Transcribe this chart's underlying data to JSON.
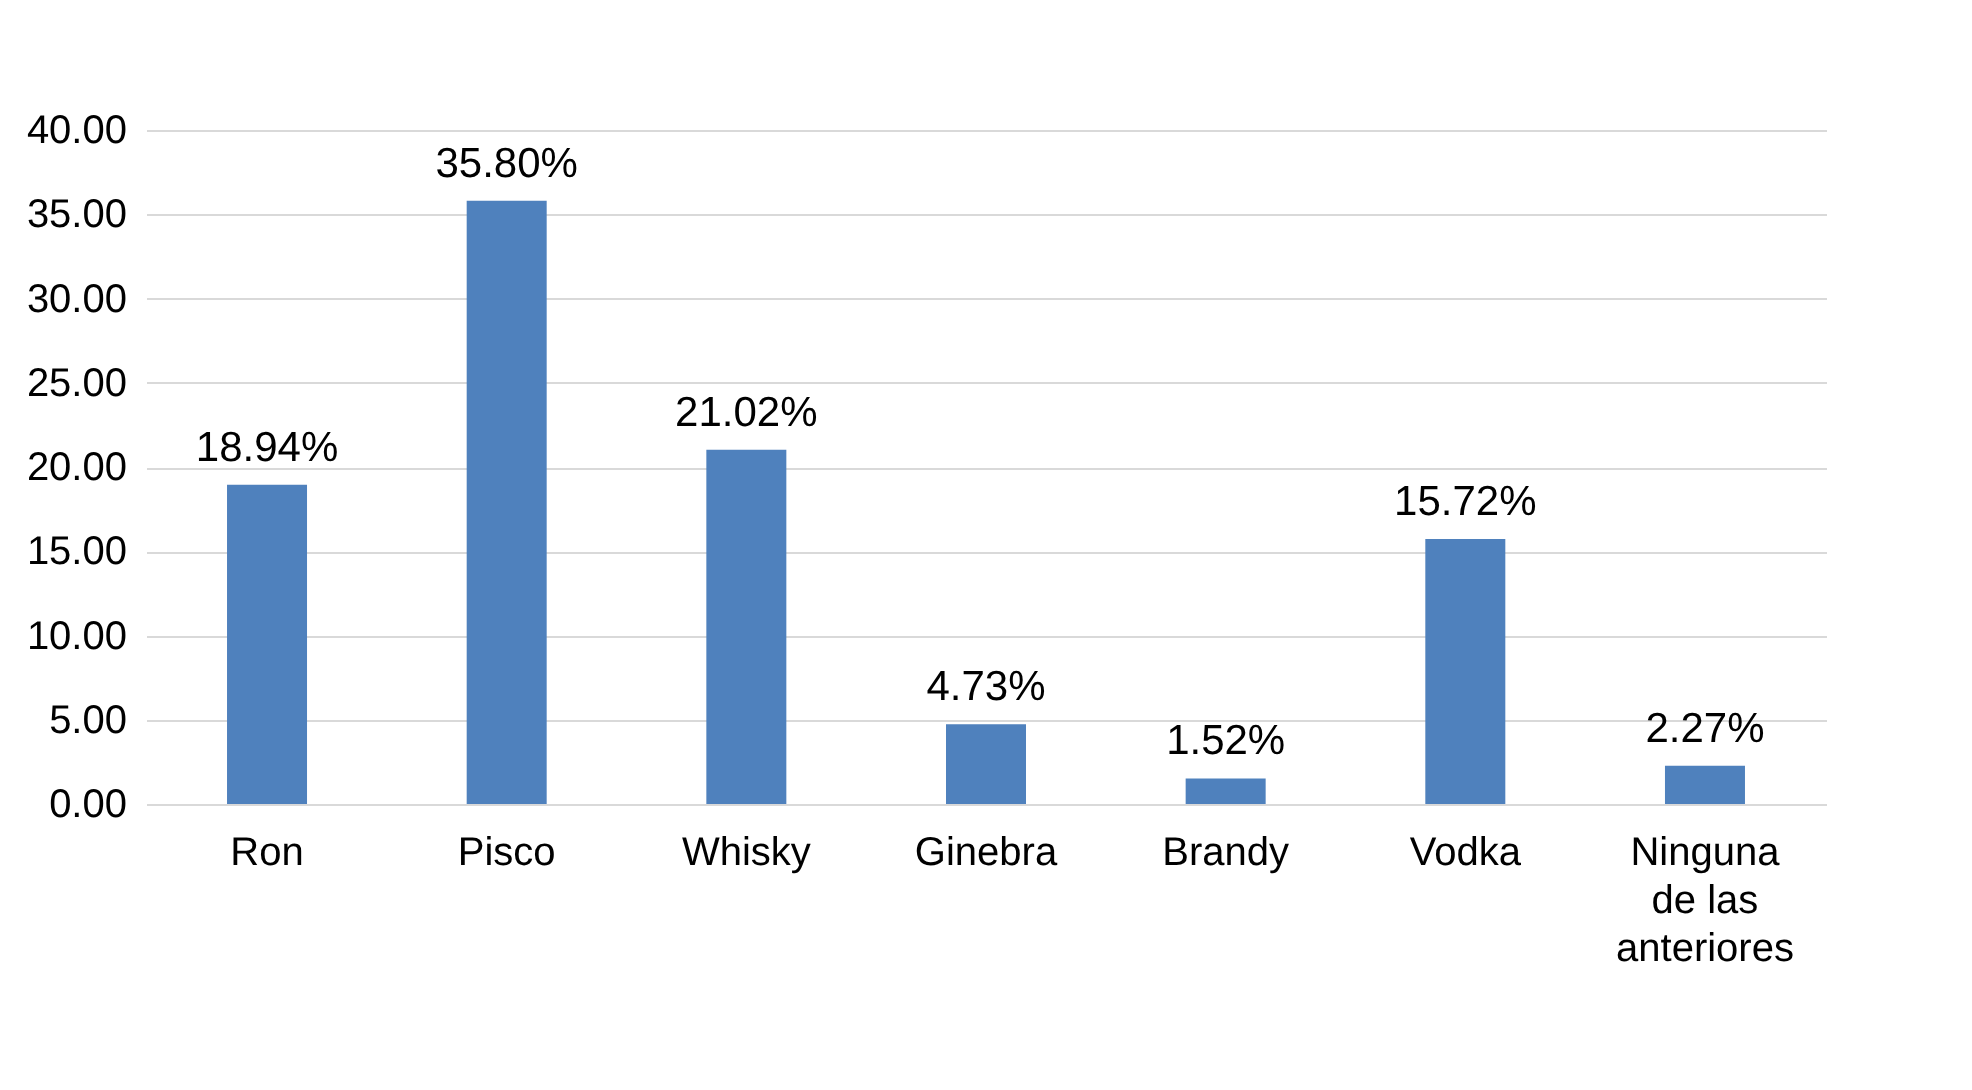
{
  "chart_data": {
    "type": "bar",
    "categories": [
      "Ron",
      "Pisco",
      "Whisky",
      "Ginebra",
      "Brandy",
      "Vodka",
      "Ninguna de las anteriores"
    ],
    "values": [
      18.94,
      35.8,
      21.02,
      4.73,
      1.52,
      15.72,
      2.27
    ],
    "value_labels": [
      "18.94%",
      "35.80%",
      "21.02%",
      "4.73%",
      "1.52%",
      "15.72%",
      "2.27%"
    ],
    "color": "#4f81bd",
    "ylim": [
      0,
      40
    ],
    "yticks": [
      {
        "value": 0,
        "label": "0.00"
      },
      {
        "value": 5,
        "label": "5.00"
      },
      {
        "value": 10,
        "label": "10.00"
      },
      {
        "value": 15,
        "label": "15.00"
      },
      {
        "value": 20,
        "label": "20.00"
      },
      {
        "value": 25,
        "label": "25.00"
      },
      {
        "value": 30,
        "label": "30.00"
      },
      {
        "value": 35,
        "label": "35.00"
      },
      {
        "value": 40,
        "label": "40.00"
      }
    ],
    "grid": "y"
  }
}
